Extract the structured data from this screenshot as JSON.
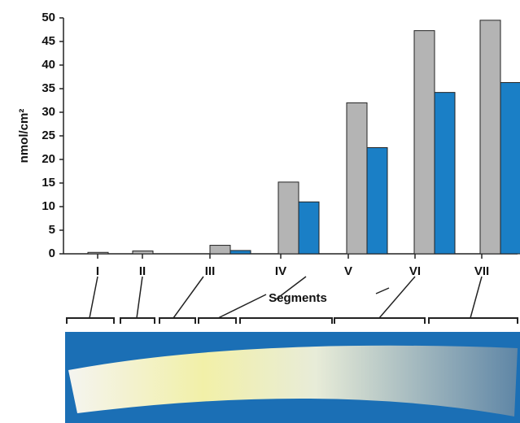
{
  "chart_data": {
    "type": "bar",
    "y_label": "nmol/cm²",
    "x_label": "Segments",
    "categories": [
      "I",
      "II",
      "III",
      "IV",
      "V",
      "VI",
      "VII"
    ],
    "series": [
      {
        "color": "#b4b4b4",
        "values": [
          0.3,
          0.6,
          1.8,
          15.2,
          32,
          47.3,
          49.5
        ]
      },
      {
        "color": "#1a7fc6",
        "values": [
          0,
          0,
          0.7,
          11,
          22.5,
          34.2,
          36.3
        ]
      }
    ],
    "ylim": [
      0,
      50
    ],
    "yticks": [
      0,
      5,
      10,
      15,
      20,
      25,
      30,
      35,
      40,
      45,
      50
    ]
  }
}
